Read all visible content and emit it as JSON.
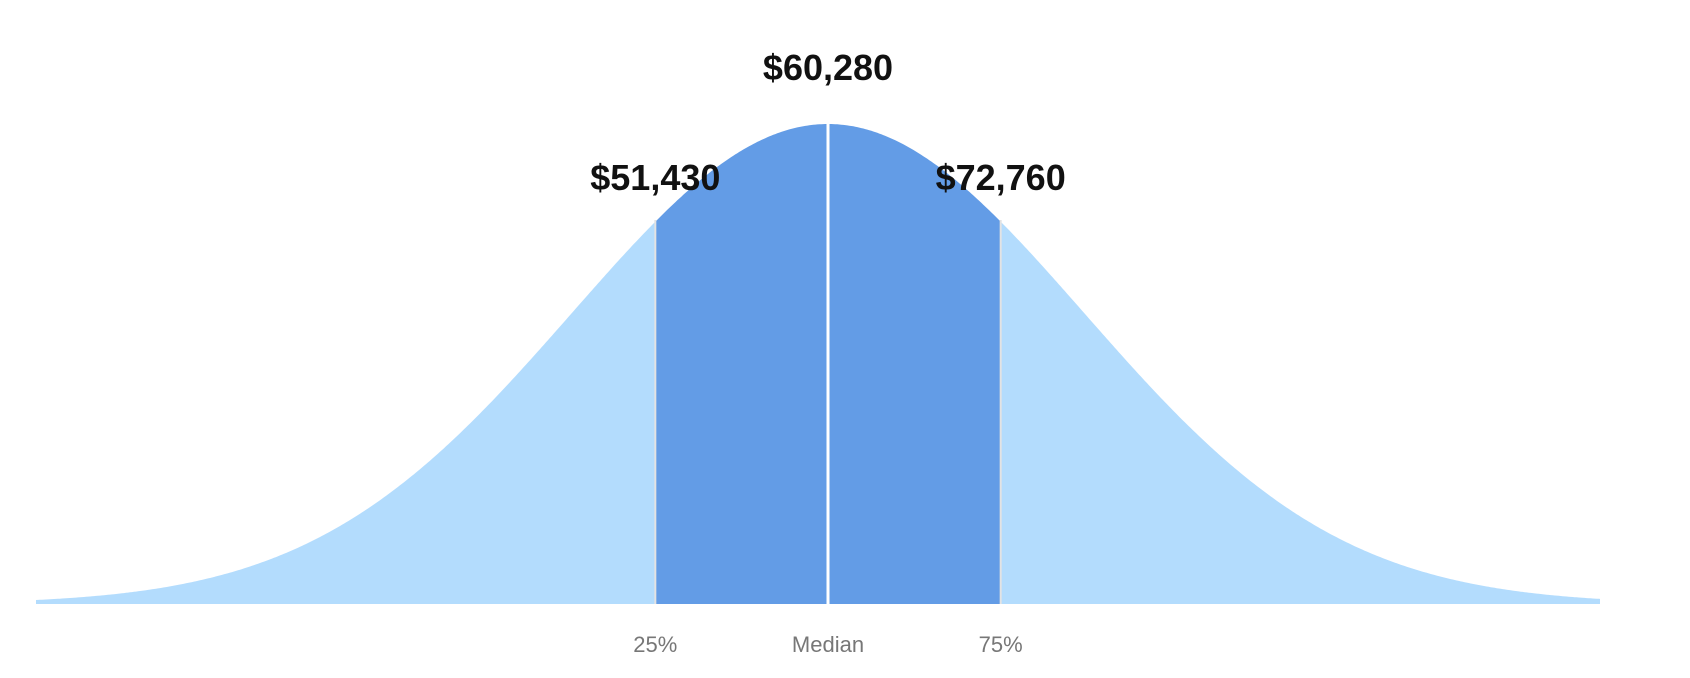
{
  "chart_data": {
    "type": "area",
    "distribution": "normal",
    "median": 60280,
    "percentiles": [
      {
        "percentile": 25,
        "label": "25%",
        "value": 51430,
        "value_label": "$51,430"
      },
      {
        "percentile": 50,
        "label": "Median",
        "value": 60280,
        "value_label": "$60,280"
      },
      {
        "percentile": 75,
        "label": "75%",
        "value": 72760,
        "value_label": "$72,760"
      }
    ],
    "title": "",
    "xlabel": "",
    "ylabel": "",
    "grid": false,
    "colors": {
      "tail": "#b3dcfd",
      "interquartile": "#639ce6",
      "marker_line": "#e3e3e3",
      "median_line": "#ffffff"
    }
  }
}
